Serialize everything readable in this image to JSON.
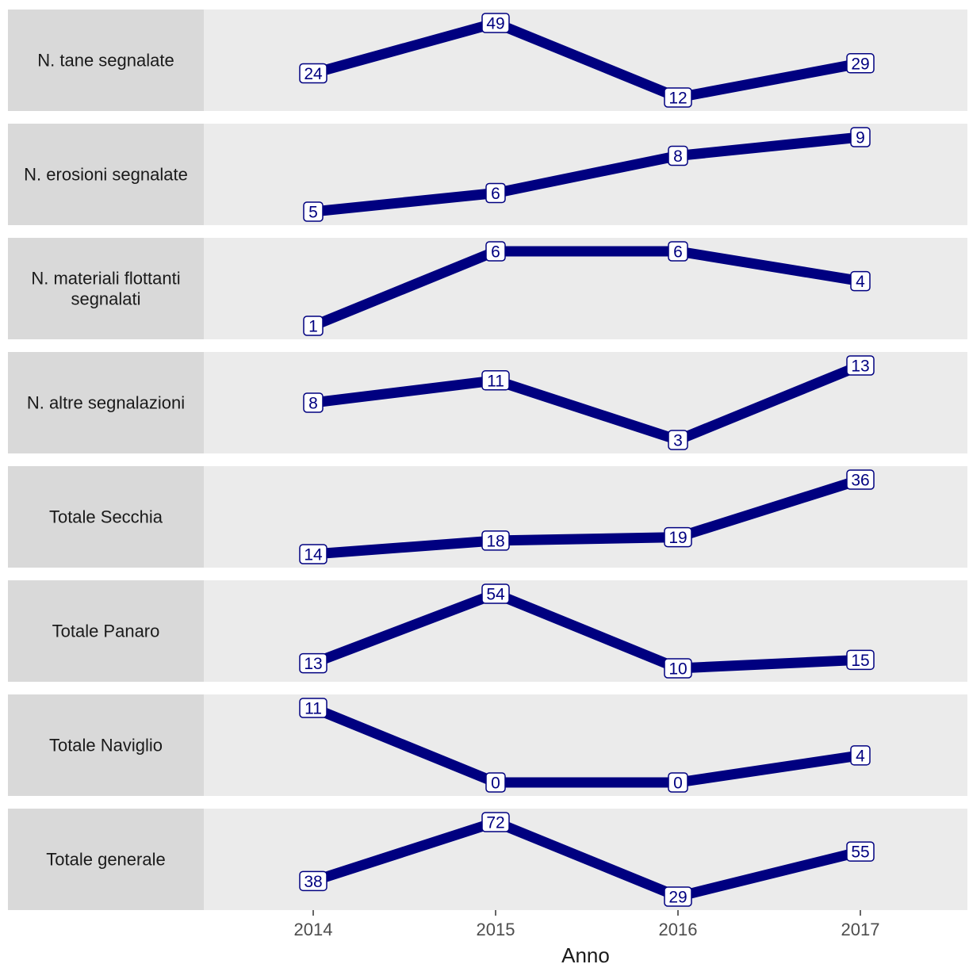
{
  "chart_data": {
    "type": "line",
    "xlabel": "Anno",
    "x": [
      "2014",
      "2015",
      "2016",
      "2017"
    ],
    "colors": {
      "line": "#000080",
      "panel": "#ebebeb",
      "strip": "#d9d9d9",
      "label_fill": "#ffffff"
    },
    "grid": false,
    "facets": [
      {
        "label": "N. tane segnalate",
        "values": [
          24,
          49,
          12,
          29
        ]
      },
      {
        "label": "N. erosioni segnalate",
        "values": [
          5,
          6,
          8,
          9
        ]
      },
      {
        "label": "N. materiali flottanti segnalati",
        "label_lines": [
          "N. materiali flottanti",
          "segnalati"
        ],
        "values": [
          1,
          6,
          6,
          4
        ]
      },
      {
        "label": "N. altre segnalazioni",
        "values": [
          8,
          11,
          3,
          13
        ]
      },
      {
        "label": "Totale Secchia",
        "values": [
          14,
          18,
          19,
          36
        ]
      },
      {
        "label": "Totale Panaro",
        "values": [
          13,
          54,
          10,
          15
        ]
      },
      {
        "label": "Totale Naviglio",
        "values": [
          11,
          0,
          0,
          4
        ]
      },
      {
        "label": "Totale generale",
        "values": [
          38,
          72,
          29,
          55
        ]
      }
    ]
  }
}
